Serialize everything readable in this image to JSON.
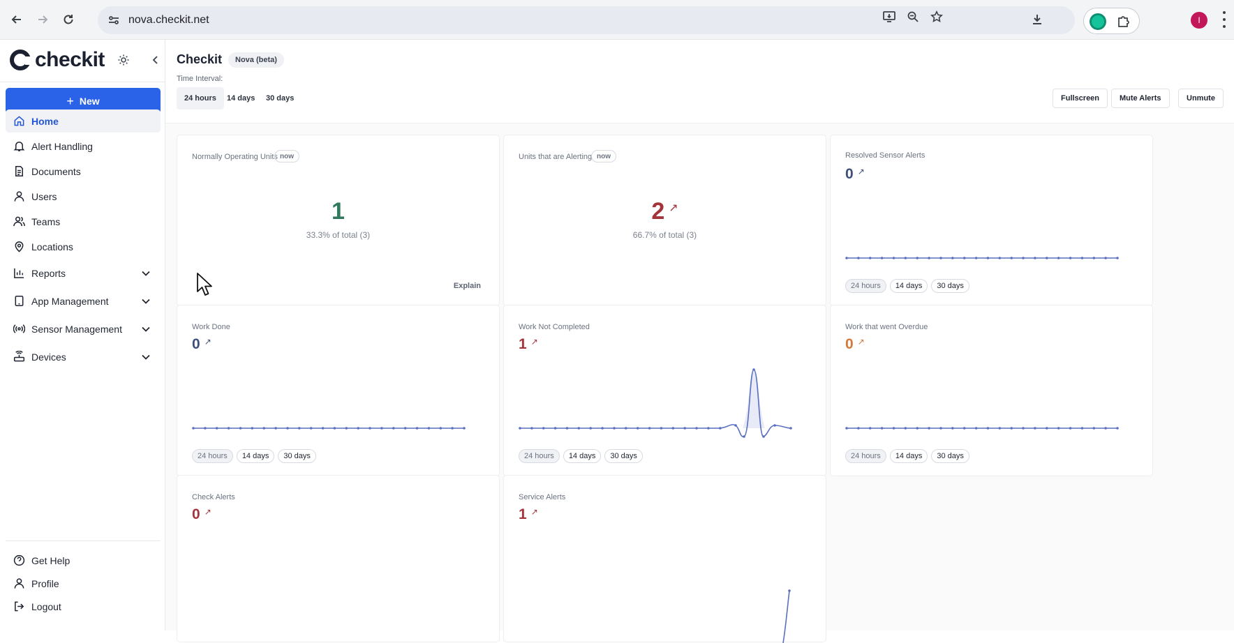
{
  "browser": {
    "url": "nova.checkit.net",
    "avatar_initial": "I"
  },
  "sidebar": {
    "logo_text": "checkit",
    "new_label": "New",
    "items": [
      {
        "label": "Home",
        "icon": "home-icon",
        "active": true
      },
      {
        "label": "Alert Handling",
        "icon": "bell-icon"
      },
      {
        "label": "Documents",
        "icon": "document-icon"
      },
      {
        "label": "Users",
        "icon": "user-icon"
      },
      {
        "label": "Teams",
        "icon": "users-icon"
      },
      {
        "label": "Locations",
        "icon": "map-pin-icon"
      },
      {
        "label": "Reports",
        "icon": "bar-chart-icon",
        "expandable": true
      },
      {
        "label": "App Management",
        "icon": "tablet-icon",
        "expandable": true
      },
      {
        "label": "Sensor Management",
        "icon": "broadcast-icon",
        "expandable": true
      },
      {
        "label": "Devices",
        "icon": "router-icon",
        "expandable": true
      }
    ],
    "footer": [
      {
        "label": "Get Help",
        "icon": "help-circle-icon"
      },
      {
        "label": "Profile",
        "icon": "user-icon"
      },
      {
        "label": "Logout",
        "icon": "logout-icon"
      }
    ]
  },
  "header": {
    "title": "Checkit",
    "badge": "Nova (beta)",
    "interval_label": "Time Interval:",
    "intervals": [
      "24 hours",
      "14 days",
      "30 days"
    ],
    "selected_interval": "24 hours",
    "actions": [
      "Fullscreen",
      "Mute Alerts",
      "Unmute"
    ]
  },
  "cards": [
    {
      "title": "Normally Operating Units",
      "badge": "now",
      "value": "1",
      "sub": "33.3% of total (3)",
      "action": "Explain"
    },
    {
      "title": "Units that are Alerting",
      "badge": "now",
      "value": "2",
      "arrow": "↗",
      "sub": "66.7% of total (3)"
    },
    {
      "title": "Resolved Sensor Alerts",
      "value": "0",
      "arrow": "↗",
      "chips": [
        "24 hours",
        "14 days",
        "30 days"
      ]
    },
    {
      "title": "Work Done",
      "value": "0",
      "arrow": "↗",
      "chips": [
        "24 hours",
        "14 days",
        "30 days"
      ]
    },
    {
      "title": "Work Not Completed",
      "value": "1",
      "arrow": "↗",
      "chips": [
        "24 hours",
        "14 days",
        "30 days"
      ]
    },
    {
      "title": "Work that went Overdue",
      "value": "0",
      "arrow": "↗",
      "chips": [
        "24 hours",
        "14 days",
        "30 days"
      ]
    },
    {
      "title": "Check Alerts",
      "value": "0",
      "arrow": "↗"
    },
    {
      "title": "Service Alerts",
      "value": "1",
      "arrow": "↗"
    }
  ],
  "colors": {
    "accent": "#2b63e8",
    "ok": "#2f7a5c",
    "alert": "#a2343a",
    "overdue": "#d4793a",
    "neutral": "#3d4f7a",
    "sparkline": "#5a6fbf"
  }
}
